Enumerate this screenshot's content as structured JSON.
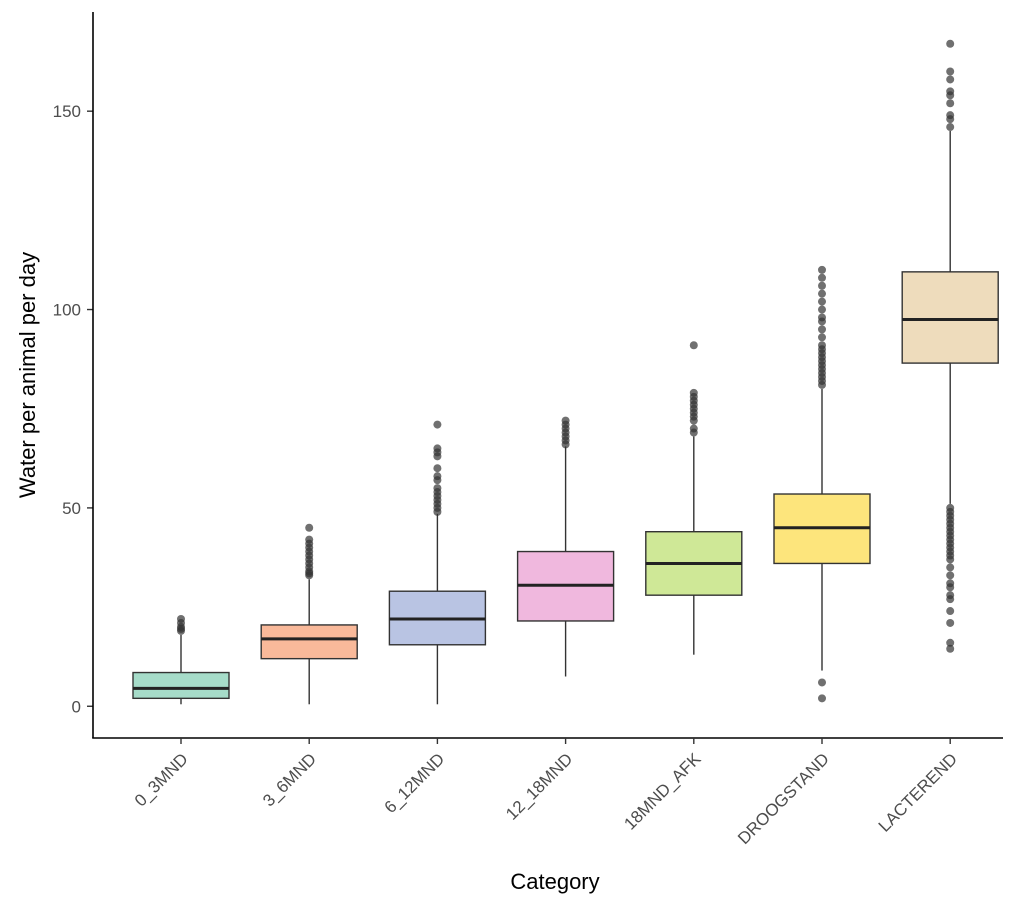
{
  "chart_data": {
    "type": "boxplot",
    "xlabel": "Category",
    "ylabel": "Water per animal per day",
    "ylim": [
      -8,
      175
    ],
    "y_ticks": [
      0,
      50,
      100,
      150
    ],
    "y_tick_labels": [
      "0",
      "50",
      "100",
      "150"
    ],
    "categories": [
      "0_3MND",
      "3_6MND",
      "6_12MND",
      "12_18MND",
      "18MND_AFK",
      "DROOGSTAND",
      "LACTEREND"
    ],
    "series": [
      {
        "name": "0_3MND",
        "color": "#a6dcc9",
        "whisker_low": 0.5,
        "q1": 2,
        "median": 4.5,
        "q3": 8.5,
        "whisker_high": 18,
        "outliers": [
          19,
          19.5,
          20,
          21,
          22
        ]
      },
      {
        "name": "3_6MND",
        "color": "#f9b99a",
        "whisker_low": 0.5,
        "q1": 12,
        "median": 17,
        "q3": 20.5,
        "whisker_high": 32,
        "outliers": [
          33,
          33.5,
          34,
          35,
          36,
          37,
          38,
          39,
          40,
          41,
          42,
          45
        ]
      },
      {
        "name": "6_12MND",
        "color": "#b9c4e3",
        "whisker_low": 0.5,
        "q1": 15.5,
        "median": 22,
        "q3": 29,
        "whisker_high": 48.5,
        "outliers": [
          49,
          50,
          51,
          52,
          53,
          54,
          55,
          57,
          58,
          60,
          63,
          64,
          65,
          71
        ]
      },
      {
        "name": "12_18MND",
        "color": "#f0b8de",
        "whisker_low": 7.5,
        "q1": 21.5,
        "median": 30.5,
        "q3": 39,
        "whisker_high": 65.5,
        "outliers": [
          66,
          67,
          68,
          69,
          70,
          71,
          72
        ]
      },
      {
        "name": "18MND_AFK",
        "color": "#cfe897",
        "whisker_low": 13,
        "q1": 28,
        "median": 36,
        "q3": 44,
        "whisker_high": 68,
        "outliers": [
          69,
          70,
          72,
          73,
          74,
          75,
          76,
          77,
          78,
          79,
          91
        ]
      },
      {
        "name": "DROOGSTAND",
        "color": "#fde57c",
        "whisker_low": 9,
        "q1": 36,
        "median": 45,
        "q3": 53.5,
        "whisker_high": 80,
        "outliers": [
          2,
          6,
          81,
          82,
          83,
          84,
          85,
          86,
          87,
          88,
          89,
          90,
          91,
          93,
          95,
          97,
          98,
          100,
          102,
          104,
          106,
          108,
          110
        ]
      },
      {
        "name": "LACTEREND",
        "color": "#eedcbc",
        "whisker_low": 51,
        "q1": 86.5,
        "median": 97.5,
        "q3": 109.5,
        "whisker_high": 145,
        "outliers": [
          14.5,
          16,
          21,
          24,
          27,
          28,
          30,
          31,
          33,
          35,
          37,
          38,
          39,
          40,
          41,
          42,
          43,
          44,
          45,
          46,
          47,
          48,
          49,
          50,
          146,
          148,
          149,
          152,
          154,
          155,
          158,
          160,
          167
        ]
      }
    ]
  }
}
